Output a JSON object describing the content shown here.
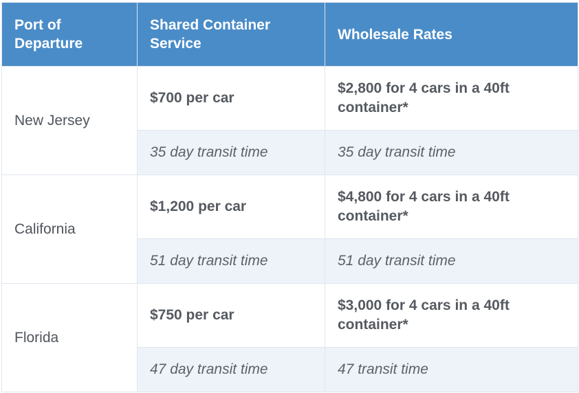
{
  "table": {
    "headers": [
      "Port of Departure",
      "Shared Container Service",
      "Wholesale Rates"
    ],
    "rows": [
      {
        "port": "New Jersey",
        "shared_price": "$700 per car",
        "wholesale_price": "$2,800 for 4 cars in a 40ft container*",
        "shared_transit": "35 day transit time",
        "wholesale_transit": "35 day transit time"
      },
      {
        "port": "California",
        "shared_price": "$1,200 per car",
        "wholesale_price": "$4,800 for 4 cars in a 40ft container*",
        "shared_transit": "51 day transit time",
        "wholesale_transit": "51 day transit time"
      },
      {
        "port": "Florida",
        "shared_price": "$750 per car",
        "wholesale_price": "$3,000 for 4 cars in a 40ft container*",
        "shared_transit": "47 day transit time",
        "wholesale_transit": "47 transit time"
      }
    ]
  },
  "colors": {
    "header_background": "#4a8cc8",
    "header_text": "#ffffff",
    "body_text": "#555a60",
    "transit_row_background": "#eef3f9",
    "border": "#dfe6ee"
  }
}
